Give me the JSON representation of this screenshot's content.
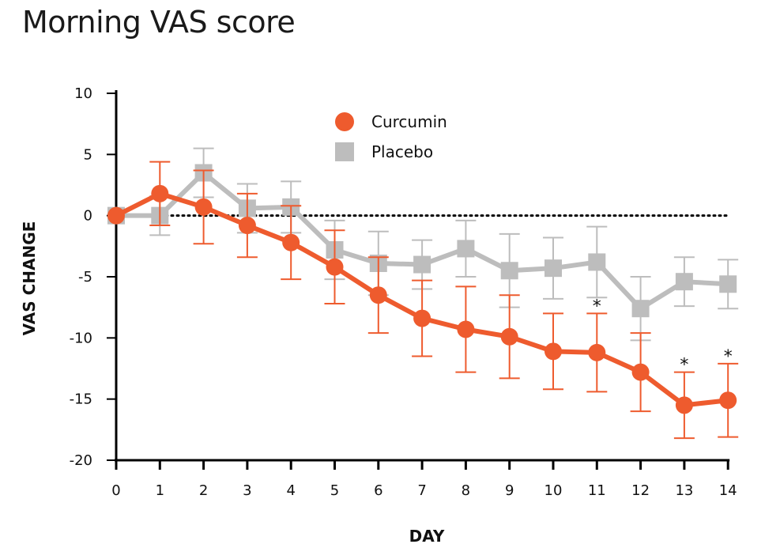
{
  "chart_data": {
    "type": "line",
    "title": "Morning VAS score",
    "xlabel": "DAY",
    "ylabel": "VAS CHANGE",
    "x": [
      0,
      1,
      2,
      3,
      4,
      5,
      6,
      7,
      8,
      9,
      10,
      11,
      12,
      13,
      14
    ],
    "xticks": [
      "0",
      "1",
      "2",
      "3",
      "4",
      "5",
      "6",
      "7",
      "8",
      "9",
      "10",
      "11",
      "12",
      "13",
      "14"
    ],
    "yticks": [
      10,
      5,
      0,
      -5,
      -10,
      -15,
      -20
    ],
    "ylim": [
      -20,
      10
    ],
    "reference_line": 0,
    "series": [
      {
        "name": "Curcumin",
        "marker": "circle",
        "color": "#EE5B2E",
        "values": [
          0,
          1.8,
          0.7,
          -0.8,
          -2.2,
          -4.2,
          -6.5,
          -8.4,
          -9.3,
          -9.9,
          -11.1,
          -11.2,
          -12.8,
          -15.5,
          -15.1
        ],
        "err_low": [
          0,
          2.6,
          3.0,
          2.6,
          3.0,
          3.0,
          3.1,
          3.1,
          3.5,
          3.4,
          3.1,
          3.2,
          3.2,
          2.7,
          3.0
        ],
        "err_high": [
          0,
          2.6,
          3.0,
          2.6,
          3.0,
          3.0,
          3.1,
          3.1,
          3.5,
          3.4,
          3.1,
          3.2,
          3.2,
          2.7,
          3.0
        ],
        "significant": [
          false,
          false,
          false,
          false,
          false,
          false,
          false,
          false,
          false,
          false,
          false,
          true,
          false,
          true,
          true
        ]
      },
      {
        "name": "Placebo",
        "marker": "square",
        "color": "#BDBDBD",
        "values": [
          0,
          0,
          3.5,
          0.6,
          0.7,
          -2.8,
          -3.9,
          -4.0,
          -2.7,
          -4.5,
          -4.3,
          -3.8,
          -7.6,
          -5.4,
          -5.6
        ],
        "err_low": [
          0,
          1.6,
          2.0,
          2.0,
          2.1,
          2.4,
          2.6,
          2.0,
          2.3,
          3.0,
          2.5,
          2.9,
          2.6,
          2.0,
          2.0
        ],
        "err_high": [
          0,
          1.6,
          2.0,
          2.0,
          2.1,
          2.4,
          2.6,
          2.0,
          2.3,
          3.0,
          2.5,
          2.9,
          2.6,
          2.0,
          2.0
        ]
      }
    ],
    "legend": {
      "position": "top-center",
      "entries": [
        "Curcumin",
        "Placebo"
      ]
    },
    "annotations": [
      {
        "x": 11,
        "text": "*"
      },
      {
        "x": 13,
        "text": "*"
      },
      {
        "x": 14,
        "text": "*"
      }
    ],
    "grid": false
  }
}
